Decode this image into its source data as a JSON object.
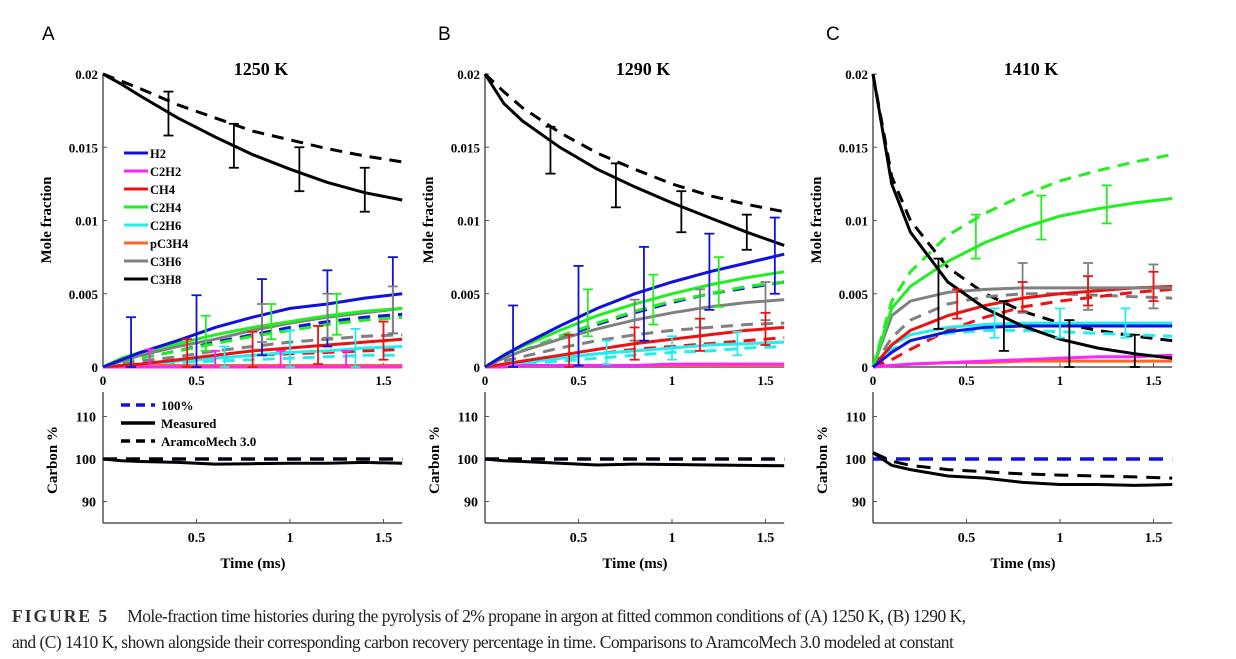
{
  "caption": {
    "label": "FIGURE 5",
    "line1": "Mole-fraction time histories during the pyrolysis of 2% propane in argon at fitted common conditions of (A) 1250 K, (B) 1290 K,",
    "line2": "and (C) 1410 K, shown alongside their corresponding carbon recovery percentage in time. Comparisons to AramcoMech 3.0 modeled at constant"
  },
  "colors": {
    "H2": "#1010e0",
    "C2H2": "#ff22ff",
    "CH4": "#ee1111",
    "C2H4": "#22ee22",
    "C2H6": "#22eeee",
    "pC3H4": "#ff6622",
    "C3H6": "#808080",
    "C3H8": "#000000",
    "ref100": "#1010e0"
  },
  "legend_species": [
    "H2",
    "C2H2",
    "CH4",
    "C2H4",
    "C2H6",
    "pC3H4",
    "C3H6",
    "C3H8"
  ],
  "legend_carbon": [
    "100%",
    "Measured",
    "AramcoMech 3.0"
  ],
  "chart_data": [
    {
      "type": "line",
      "panel": "A",
      "title": "1250 K",
      "ylabel": "Mole fraction",
      "ylabel2": "Carbon %",
      "xlabel": "Time (ms)",
      "xlim": [
        0,
        1.6
      ],
      "ylim": [
        0,
        0.02
      ],
      "ylim2": [
        85,
        115
      ],
      "xticks": [
        "0",
        "0.5",
        "1",
        "1.5"
      ],
      "xticks2": [
        "0.5",
        "1",
        "1.5"
      ],
      "yticks": [
        "0",
        "0.005",
        "0.01",
        "0.015",
        "0.02"
      ],
      "yticks2": [
        "90",
        "100",
        "110"
      ],
      "t": [
        0,
        0.1,
        0.2,
        0.4,
        0.6,
        0.8,
        1.0,
        1.2,
        1.4,
        1.6
      ],
      "measured": {
        "C3H8": [
          0.02,
          0.0193,
          0.0185,
          0.017,
          0.0157,
          0.0145,
          0.0135,
          0.0126,
          0.0119,
          0.0114
        ],
        "H2": [
          0,
          0.0005,
          0.001,
          0.0018,
          0.0027,
          0.0034,
          0.004,
          0.0043,
          0.0047,
          0.005
        ],
        "C2H4": [
          0,
          0.0006,
          0.001,
          0.0016,
          0.0022,
          0.0027,
          0.0031,
          0.0035,
          0.0038,
          0.004
        ],
        "C3H6": [
          0,
          0.0004,
          0.0008,
          0.0014,
          0.0019,
          0.0025,
          0.003,
          0.0034,
          0.0037,
          0.004
        ],
        "CH4": [
          0,
          0.0001,
          0.0002,
          0.0005,
          0.0008,
          0.0011,
          0.0013,
          0.0015,
          0.0017,
          0.0019
        ],
        "C2H6": [
          0,
          0.0001,
          0.0002,
          0.0004,
          0.0006,
          0.0008,
          0.001,
          0.0011,
          0.0013,
          0.0014
        ],
        "C2H2": [
          0,
          0,
          0,
          0,
          0,
          0,
          0,
          0,
          0,
          0
        ],
        "pC3H4": [
          0,
          0.0001,
          0.0001,
          0.0001,
          0.0001,
          0.0001,
          0.0001,
          0.0001,
          0.0001,
          0.0001
        ]
      },
      "model": {
        "C3H8": [
          0.02,
          0.0195,
          0.019,
          0.0179,
          0.017,
          0.0161,
          0.0155,
          0.0149,
          0.0144,
          0.014
        ],
        "H2": [
          0,
          0.0003,
          0.0006,
          0.0011,
          0.0017,
          0.0022,
          0.0027,
          0.0031,
          0.0034,
          0.0036
        ],
        "C2H4": [
          0,
          0.0003,
          0.0006,
          0.0011,
          0.0016,
          0.0021,
          0.0025,
          0.0029,
          0.0032,
          0.0034
        ],
        "C3H6": [
          0,
          0.0002,
          0.0004,
          0.0007,
          0.0011,
          0.0014,
          0.0017,
          0.0019,
          0.0021,
          0.0022
        ],
        "CH4": [
          0,
          0.0001,
          0.0002,
          0.0004,
          0.0006,
          0.0008,
          0.0009,
          0.001,
          0.0011,
          0.0012
        ],
        "C2H6": [
          0,
          0.0001,
          0.0001,
          0.0003,
          0.0004,
          0.0005,
          0.0006,
          0.0007,
          0.0008,
          0.0008
        ]
      },
      "errorbars": {
        "C3H8": [
          [
            0.35,
            0.0173,
            0.0015
          ],
          [
            0.7,
            0.0151,
            0.0015
          ],
          [
            1.05,
            0.0135,
            0.0015
          ],
          [
            1.4,
            0.0121,
            0.0015
          ]
        ],
        "H2": [
          [
            0.15,
            0.0008,
            0.0026
          ],
          [
            0.5,
            0.0023,
            0.0026
          ],
          [
            0.85,
            0.0034,
            0.0026
          ],
          [
            1.2,
            0.004,
            0.0026
          ],
          [
            1.55,
            0.0049,
            0.0026
          ]
        ],
        "C2H4": [
          [
            0.55,
            0.0023,
            0.0012
          ],
          [
            0.9,
            0.0031,
            0.0012
          ],
          [
            1.25,
            0.0036,
            0.0014
          ]
        ],
        "C3H6": [
          [
            0.85,
            0.003,
            0.0013
          ],
          [
            1.2,
            0.0035,
            0.0015
          ],
          [
            1.55,
            0.0039,
            0.0016
          ]
        ],
        "CH4": [
          [
            0.45,
            0.0007,
            0.0012
          ],
          [
            0.8,
            0.0011,
            0.0013
          ],
          [
            1.15,
            0.0015,
            0.0013
          ],
          [
            1.5,
            0.0018,
            0.0013
          ]
        ],
        "C2H6": [
          [
            0.65,
            0.0007,
            0.0007
          ],
          [
            1.0,
            0.001,
            0.0015
          ],
          [
            1.35,
            0.0013,
            0.0013
          ]
        ],
        "C2H2": [
          [
            0.25,
            0,
            0.0012
          ],
          [
            0.6,
            0,
            0.0011
          ],
          [
            0.95,
            0,
            0.0011
          ],
          [
            1.3,
            0,
            0.0011
          ]
        ]
      },
      "carbon_measured": [
        100,
        99.6,
        99.4,
        99.2,
        98.8,
        98.9,
        99.0,
        99.0,
        99.2,
        99.0
      ],
      "carbon_model": [
        100,
        100,
        100,
        100,
        100,
        100,
        100,
        100,
        100,
        100
      ]
    },
    {
      "type": "line",
      "panel": "B",
      "title": "1290 K",
      "ylabel": "Mole fraction",
      "ylabel2": "Carbon %",
      "xlabel": "Time (ms)",
      "xlim": [
        0,
        1.6
      ],
      "ylim": [
        0,
        0.02
      ],
      "ylim2": [
        85,
        115
      ],
      "xticks": [
        "0",
        "0.5",
        "1",
        "1.5"
      ],
      "xticks2": [
        "0.5",
        "1",
        "1.5"
      ],
      "yticks": [
        "0",
        "0.005",
        "0.01",
        "0.015",
        "0.02"
      ],
      "yticks2": [
        "90",
        "100",
        "110"
      ],
      "t": [
        0,
        0.1,
        0.2,
        0.4,
        0.6,
        0.8,
        1.0,
        1.2,
        1.4,
        1.6
      ],
      "measured": {
        "C3H8": [
          0.02,
          0.018,
          0.0168,
          0.015,
          0.0135,
          0.0123,
          0.0112,
          0.0102,
          0.0092,
          0.0083
        ],
        "H2": [
          0,
          0.0008,
          0.0015,
          0.0028,
          0.004,
          0.005,
          0.0058,
          0.0065,
          0.0071,
          0.0077
        ],
        "C2H4": [
          0,
          0.0008,
          0.0014,
          0.0025,
          0.0035,
          0.0043,
          0.005,
          0.0056,
          0.0061,
          0.0065
        ],
        "C3H6": [
          0,
          0.0006,
          0.0011,
          0.0019,
          0.0026,
          0.0032,
          0.0037,
          0.0041,
          0.0044,
          0.0046
        ],
        "CH4": [
          0,
          0.0002,
          0.0004,
          0.0008,
          0.0012,
          0.0016,
          0.0019,
          0.0022,
          0.0025,
          0.0027
        ],
        "C2H6": [
          0,
          0.0002,
          0.0003,
          0.0006,
          0.0009,
          0.0011,
          0.0013,
          0.0015,
          0.0016,
          0.0017
        ],
        "C2H2": [
          0,
          0,
          0.0001,
          0.0001,
          0.0001,
          0.0001,
          0.0002,
          0.0002,
          0.0002,
          0.0002
        ],
        "pC3H4": [
          0,
          0.0001,
          0.0001,
          0.0001,
          0.0001,
          0.0001,
          0.0001,
          0.0001,
          0.0001,
          0.0001
        ]
      },
      "model": {
        "C3H8": [
          0.02,
          0.0188,
          0.0177,
          0.016,
          0.0146,
          0.0135,
          0.0125,
          0.0117,
          0.0111,
          0.0106
        ],
        "H2": [
          0,
          0.0006,
          0.0011,
          0.002,
          0.0029,
          0.0037,
          0.0044,
          0.005,
          0.0054,
          0.0058
        ],
        "C2H4": [
          0,
          0.0006,
          0.0011,
          0.0021,
          0.003,
          0.0038,
          0.0045,
          0.005,
          0.0055,
          0.0058
        ],
        "C3H6": [
          0,
          0.0004,
          0.0007,
          0.0013,
          0.0018,
          0.0022,
          0.0025,
          0.0027,
          0.0029,
          0.003
        ],
        "CH4": [
          0,
          0.0001,
          0.0003,
          0.0006,
          0.0009,
          0.0012,
          0.0014,
          0.0016,
          0.0018,
          0.002
        ],
        "C2H6": [
          0,
          0.0001,
          0.0002,
          0.0004,
          0.0006,
          0.0008,
          0.001,
          0.0011,
          0.0013,
          0.0014
        ]
      },
      "errorbars": {
        "C3H8": [
          [
            0.35,
            0.0148,
            0.0016
          ],
          [
            0.7,
            0.0124,
            0.0015
          ],
          [
            1.05,
            0.0106,
            0.0014
          ],
          [
            1.4,
            0.0092,
            0.0012
          ]
        ],
        "H2": [
          [
            0.15,
            0.0012,
            0.003
          ],
          [
            0.5,
            0.0035,
            0.0034
          ],
          [
            0.85,
            0.005,
            0.0032
          ],
          [
            1.2,
            0.0065,
            0.0026
          ],
          [
            1.55,
            0.0076,
            0.0026
          ]
        ],
        "C2H4": [
          [
            0.55,
            0.0037,
            0.0016
          ],
          [
            0.9,
            0.0046,
            0.0017
          ],
          [
            1.25,
            0.0058,
            0.0017
          ]
        ],
        "C3H6": [
          [
            0.8,
            0.0032,
            0.0014
          ],
          [
            1.15,
            0.004,
            0.0013
          ],
          [
            1.5,
            0.0045,
            0.0013
          ]
        ],
        "CH4": [
          [
            0.45,
            0.0011,
            0.0011
          ],
          [
            0.8,
            0.0016,
            0.0011
          ],
          [
            1.15,
            0.0022,
            0.0011
          ],
          [
            1.5,
            0.0026,
            0.0011
          ]
        ],
        "C2H6": [
          [
            0.65,
            0.001,
            0.0008
          ],
          [
            1.0,
            0.0013,
            0.0008
          ],
          [
            1.35,
            0.0016,
            0.0008
          ]
        ]
      },
      "carbon_measured": [
        100,
        99.6,
        99.4,
        99.0,
        98.6,
        98.8,
        98.7,
        98.6,
        98.5,
        98.4
      ],
      "carbon_model": [
        100,
        100,
        100,
        100,
        100,
        100,
        100,
        100,
        100,
        100
      ]
    },
    {
      "type": "line",
      "panel": "C",
      "title": "1410 K",
      "ylabel": "Mole fraction",
      "ylabel2": "Carbon %",
      "xlabel": "Time (ms)",
      "xlim": [
        0,
        1.6
      ],
      "ylim": [
        0,
        0.02
      ],
      "ylim2": [
        85,
        115
      ],
      "xticks": [
        "0",
        "0.5",
        "1",
        "1.5"
      ],
      "xticks2": [
        "0.5",
        "1",
        "1.5"
      ],
      "yticks": [
        "0",
        "0.005",
        "0.01",
        "0.015",
        "0.02"
      ],
      "yticks2": [
        "90",
        "100",
        "110"
      ],
      "t": [
        0,
        0.1,
        0.2,
        0.4,
        0.6,
        0.8,
        1.0,
        1.2,
        1.4,
        1.6
      ],
      "measured": {
        "C3H8": [
          0.02,
          0.0125,
          0.0092,
          0.0058,
          0.004,
          0.0028,
          0.0019,
          0.0013,
          0.0009,
          0.0006
        ],
        "C2H4": [
          0,
          0.004,
          0.0055,
          0.0072,
          0.0085,
          0.0095,
          0.0103,
          0.0108,
          0.0112,
          0.0115
        ],
        "C3H6": [
          0,
          0.0035,
          0.0045,
          0.0051,
          0.0053,
          0.0054,
          0.0054,
          0.0054,
          0.0054,
          0.0054
        ],
        "CH4": [
          0,
          0.0015,
          0.0025,
          0.0035,
          0.0042,
          0.0047,
          0.005,
          0.0052,
          0.0054,
          0.0055
        ],
        "C2H6": [
          0,
          0.0015,
          0.0022,
          0.0027,
          0.0029,
          0.003,
          0.003,
          0.003,
          0.003,
          0.003
        ],
        "H2": [
          0,
          0.001,
          0.0018,
          0.0024,
          0.0027,
          0.0028,
          0.0028,
          0.0028,
          0.0028,
          0.0028
        ],
        "C2H2": [
          0,
          0.0001,
          0.0002,
          0.0003,
          0.0004,
          0.0005,
          0.0006,
          0.0007,
          0.0007,
          0.0008
        ],
        "pC3H4": [
          0,
          0.0001,
          0.0002,
          0.0003,
          0.0003,
          0.0004,
          0.0004,
          0.0004,
          0.0004,
          0.0004
        ]
      },
      "model": {
        "C3H8": [
          0.02,
          0.013,
          0.01,
          0.0068,
          0.005,
          0.0038,
          0.003,
          0.0025,
          0.0021,
          0.0018
        ],
        "C2H4": [
          0,
          0.0045,
          0.0065,
          0.009,
          0.0105,
          0.0117,
          0.0127,
          0.0134,
          0.014,
          0.0145
        ],
        "C3H6": [
          0,
          0.002,
          0.0032,
          0.0043,
          0.0048,
          0.005,
          0.005,
          0.0049,
          0.0048,
          0.0047
        ],
        "CH4": [
          0,
          0.0005,
          0.0012,
          0.0025,
          0.0034,
          0.0041,
          0.0045,
          0.0048,
          0.0051,
          0.0053
        ],
        "C2H6": [
          0,
          0.0012,
          0.0018,
          0.0023,
          0.0025,
          0.0025,
          0.0024,
          0.0023,
          0.0022,
          0.0021
        ]
      },
      "errorbars": {
        "C3H8": [
          [
            0.35,
            0.005,
            0.0024
          ],
          [
            0.7,
            0.0028,
            0.0017
          ],
          [
            1.05,
            0.0016,
            0.0016
          ],
          [
            1.4,
            0.001,
            0.0012
          ]
        ],
        "C2H4": [
          [
            0.55,
            0.0089,
            0.0015
          ],
          [
            0.9,
            0.0102,
            0.0015
          ],
          [
            1.25,
            0.0111,
            0.0013
          ]
        ],
        "C3H6": [
          [
            0.8,
            0.0054,
            0.0017
          ],
          [
            1.15,
            0.0055,
            0.0016
          ],
          [
            1.5,
            0.0055,
            0.0015
          ]
        ],
        "CH4": [
          [
            0.45,
            0.0043,
            0.001
          ],
          [
            0.8,
            0.0048,
            0.001
          ],
          [
            1.15,
            0.0052,
            0.001
          ],
          [
            1.5,
            0.0055,
            0.001
          ]
        ],
        "C2H6": [
          [
            0.65,
            0.003,
            0.001
          ],
          [
            1.0,
            0.003,
            0.001
          ],
          [
            1.35,
            0.003,
            0.001
          ]
        ]
      },
      "carbon_measured": [
        101.5,
        98.5,
        97.5,
        96.0,
        95.5,
        94.5,
        94.0,
        94.0,
        93.8,
        94.0
      ],
      "carbon_model": [
        101.5,
        99.5,
        98.5,
        97.5,
        97.0,
        96.5,
        96.2,
        96.0,
        95.8,
        95.5
      ]
    }
  ]
}
